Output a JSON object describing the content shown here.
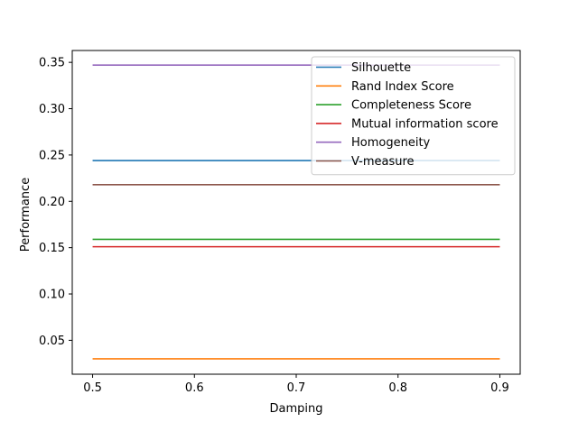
{
  "chart_data": {
    "type": "line",
    "title": "",
    "xlabel": "Damping",
    "ylabel": "Performance",
    "x": [
      0.5,
      0.6,
      0.7,
      0.8,
      0.9
    ],
    "xlim": [
      0.48,
      0.92
    ],
    "ylim": [
      0.0134,
      0.3628
    ],
    "xticks": [
      0.5,
      0.6,
      0.7,
      0.8,
      0.9
    ],
    "xtick_labels": [
      "0.5",
      "0.6",
      "0.7",
      "0.8",
      "0.9"
    ],
    "yticks": [
      0.05,
      0.1,
      0.15,
      0.2,
      0.25,
      0.3,
      0.35
    ],
    "ytick_labels": [
      "0.05",
      "0.10",
      "0.15",
      "0.20",
      "0.25",
      "0.30",
      "0.35"
    ],
    "grid": false,
    "legend_position": "top-right",
    "series": [
      {
        "name": "Silhouette",
        "color": "#1f77b4",
        "values": [
          0.244,
          0.244,
          0.244,
          0.244,
          0.244
        ]
      },
      {
        "name": "Rand Index Score",
        "color": "#ff7f0e",
        "values": [
          0.03,
          0.03,
          0.03,
          0.03,
          0.03
        ]
      },
      {
        "name": "Completeness Score",
        "color": "#2ca02c",
        "values": [
          0.159,
          0.159,
          0.159,
          0.159,
          0.159
        ]
      },
      {
        "name": "Mutual information score",
        "color": "#d62728",
        "values": [
          0.151,
          0.151,
          0.151,
          0.151,
          0.151
        ]
      },
      {
        "name": "Homogeneity",
        "color": "#9467bd",
        "values": [
          0.347,
          0.347,
          0.347,
          0.347,
          0.347
        ]
      },
      {
        "name": "V-measure",
        "color": "#8c564b",
        "values": [
          0.218,
          0.218,
          0.218,
          0.218,
          0.218
        ]
      }
    ]
  }
}
